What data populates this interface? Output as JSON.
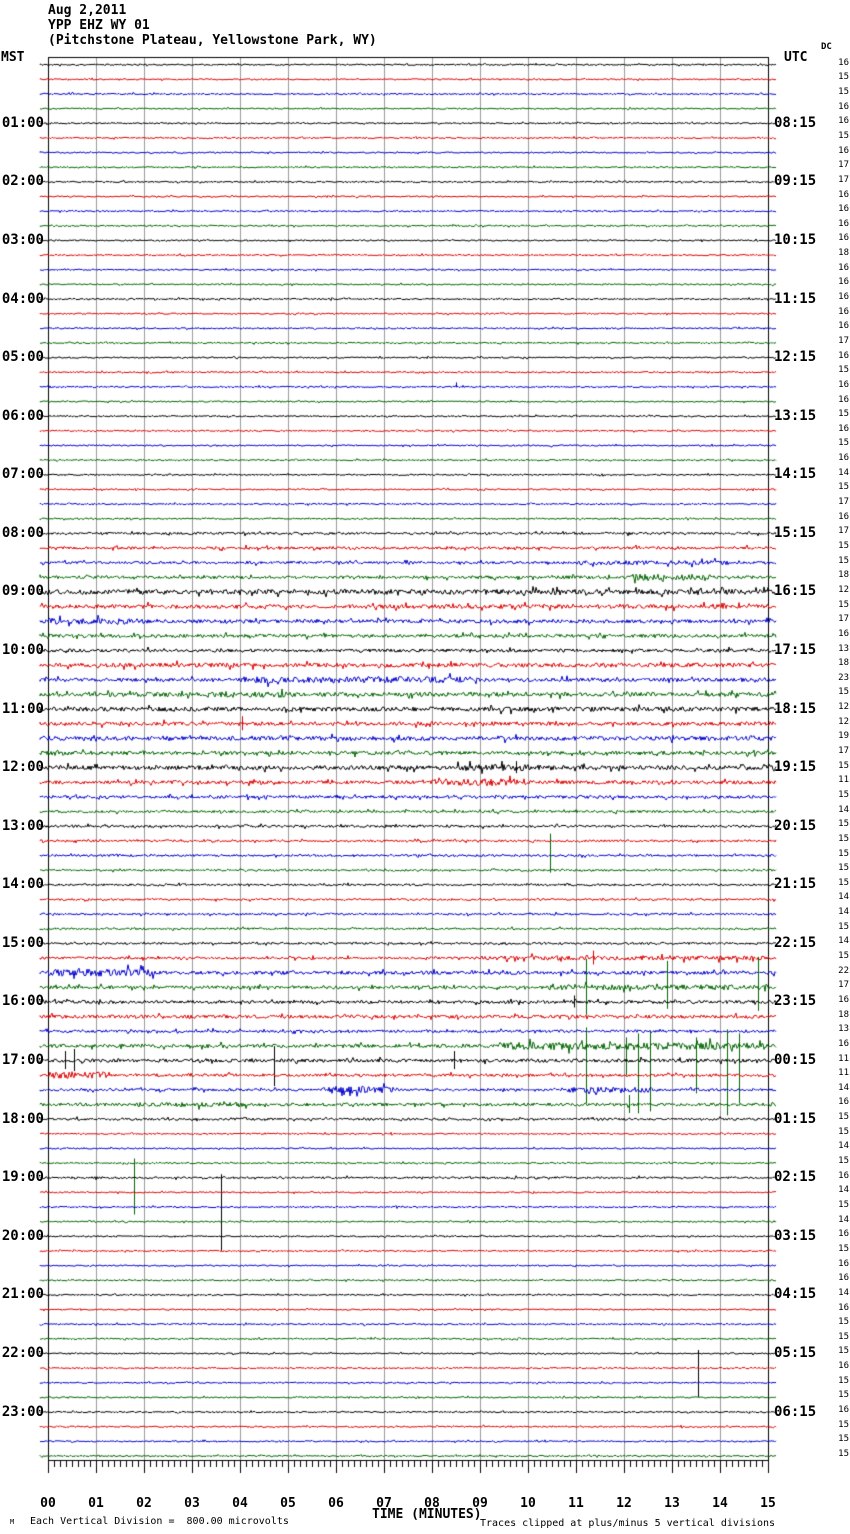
{
  "header": {
    "date": "Aug 2,2011",
    "station": "YPP EHZ WY 01",
    "location": "(Pitchstone Plateau, Yellowstone Park, WY)"
  },
  "axes": {
    "left_tz": "MST",
    "right_tz": "UTC",
    "dc_label": "DC",
    "x_title": "TIME (MINUTES)",
    "x_ticks": [
      "00",
      "01",
      "02",
      "03",
      "04",
      "05",
      "06",
      "07",
      "08",
      "09",
      "10",
      "11",
      "12",
      "13",
      "14",
      "15"
    ]
  },
  "footer": {
    "scale_note": "Each Vertical Division =  800.00 microvolts",
    "clip_note": "Traces clipped at plus/minus 5 vertical divisions",
    "corner_glyph": "M"
  },
  "chart_data": {
    "type": "line",
    "kind": "helicorder-seismogram",
    "minutes_per_line": 15,
    "lines_per_hour": 4,
    "num_rows": 96,
    "x_range": [
      0,
      15
    ],
    "grid_on": true,
    "grid_color": "#9a9a9a",
    "border_color": "#000000",
    "trace_colors": [
      "#000000",
      "#dd0000",
      "#0000cc",
      "#006600"
    ],
    "left_labels": [
      "01:00",
      "02:00",
      "03:00",
      "04:00",
      "05:00",
      "06:00",
      "07:00",
      "08:00",
      "09:00",
      "10:00",
      "11:00",
      "12:00",
      "13:00",
      "14:00",
      "15:00",
      "16:00",
      "17:00",
      "18:00",
      "19:00",
      "20:00",
      "21:00",
      "22:00",
      "23:00"
    ],
    "right_labels": [
      "08:15",
      "09:15",
      "10:15",
      "11:15",
      "12:15",
      "13:15",
      "14:15",
      "15:15",
      "16:15",
      "17:15",
      "18:15",
      "19:15",
      "20:15",
      "21:15",
      "22:15",
      "23:15",
      "00:15",
      "01:15",
      "02:15",
      "03:15",
      "04:15",
      "05:15",
      "06:15"
    ],
    "dc_values": [
      16,
      15,
      15,
      16,
      16,
      15,
      16,
      17,
      17,
      16,
      16,
      16,
      16,
      18,
      16,
      16,
      16,
      16,
      16,
      17,
      16,
      15,
      16,
      16,
      15,
      16,
      15,
      16,
      14,
      15,
      17,
      16,
      17,
      15,
      15,
      18,
      12,
      15,
      17,
      16,
      13,
      18,
      23,
      15,
      12,
      12,
      19,
      17,
      15,
      11,
      15,
      14,
      15,
      15,
      15,
      15,
      15,
      14,
      14,
      15,
      14,
      15,
      22,
      17,
      16,
      18,
      13,
      16,
      11,
      11,
      14,
      16,
      15,
      15,
      14,
      15,
      16,
      14,
      15,
      14,
      16,
      15,
      16,
      16,
      14,
      16,
      15,
      15,
      15,
      16,
      15,
      15,
      16,
      15,
      15,
      15
    ],
    "default_amp": 0.7,
    "row_overrides": {
      "22": {
        "spikes": [
          [
            8.5,
            4,
            1
          ]
        ]
      },
      "32": {
        "amp": 1.1
      },
      "33": {
        "amp": 1.3
      },
      "34": {
        "amp": 1.3,
        "segments": [
          [
            11,
            14.2,
            2.2
          ]
        ]
      },
      "35": {
        "amp": 1.4,
        "segments": [
          [
            12.2,
            13.8,
            3.2
          ]
        ]
      },
      "36": {
        "amp": 2.4
      },
      "37": {
        "amp": 2.0
      },
      "38": {
        "amp": 1.8,
        "segments": [
          [
            0,
            2,
            3.0
          ]
        ]
      },
      "39": {
        "amp": 1.6
      },
      "40": {
        "amp": 1.6
      },
      "41": {
        "amp": 2.0
      },
      "42": {
        "amp": 1.8,
        "segments": [
          [
            4,
            9,
            3.2
          ]
        ]
      },
      "43": {
        "amp": 2.0,
        "segments": [
          [
            3.3,
            5,
            3.0
          ]
        ]
      },
      "44": {
        "amp": 2.2
      },
      "45": {
        "amp": 1.8,
        "spikes": [
          [
            4.05,
            7,
            7
          ]
        ]
      },
      "46": {
        "amp": 2.0
      },
      "47": {
        "amp": 1.8
      },
      "48": {
        "amp": 2.0,
        "segments": [
          [
            8.5,
            10.5,
            3.2
          ]
        ],
        "spikes": [
          [
            9.75,
            6,
            6
          ]
        ]
      },
      "49": {
        "amp": 1.7,
        "segments": [
          [
            8,
            10,
            3.5
          ]
        ]
      },
      "50": {
        "amp": 1.4
      },
      "51": {
        "amp": 1.2
      },
      "52": {
        "amp": 1.2
      },
      "53": {
        "amp": 1.0
      },
      "54": {
        "amp": 1.0
      },
      "55": {
        "amp": 0.9,
        "spikes": [
          [
            10.45,
            36,
            3
          ]
        ]
      },
      "56": {
        "amp": 0.9
      },
      "57": {
        "amp": 0.9
      },
      "58": {
        "amp": 0.9
      },
      "59": {
        "amp": 0.9
      },
      "60": {
        "amp": 1.0
      },
      "61": {
        "amp": 1.1,
        "segments": [
          [
            9,
            15,
            2.2
          ]
        ],
        "spikes": [
          [
            11.35,
            7,
            7
          ]
        ]
      },
      "62": {
        "amp": 1.7,
        "segments": [
          [
            0,
            2.2,
            3.6
          ]
        ]
      },
      "63": {
        "amp": 1.6,
        "segments": [
          [
            10.4,
            15,
            2.6
          ]
        ],
        "spikes": [
          [
            11.2,
            28,
            28
          ],
          [
            12.9,
            26,
            22
          ],
          [
            14.8,
            30,
            24
          ]
        ]
      },
      "64": {
        "amp": 1.5,
        "spikes": [
          [
            10.95,
            6,
            6
          ]
        ]
      },
      "65": {
        "amp": 1.7
      },
      "66": {
        "amp": 1.3
      },
      "67": {
        "amp": 1.8,
        "segments": [
          [
            9.4,
            15,
            3.6
          ]
        ],
        "spikes": [
          [
            11.2,
            18,
            58
          ],
          [
            12.05,
            8,
            30
          ],
          [
            12.3,
            12,
            68
          ],
          [
            12.55,
            14,
            66
          ],
          [
            13.5,
            8,
            48
          ],
          [
            14.15,
            16,
            70
          ],
          [
            14.4,
            12,
            58
          ]
        ]
      },
      "68": {
        "amp": 1.7,
        "spikes": [
          [
            0.35,
            9,
            9
          ],
          [
            0.55,
            11,
            11
          ],
          [
            4.7,
            14,
            26
          ],
          [
            8.45,
            9,
            9
          ]
        ]
      },
      "69": {
        "amp": 1.3,
        "segments": [
          [
            0,
            1.3,
            3.4
          ]
        ]
      },
      "70": {
        "amp": 1.3,
        "segments": [
          [
            5.7,
            7.3,
            3.4
          ],
          [
            10.8,
            12.6,
            2.8
          ]
        ]
      },
      "71": {
        "amp": 1.5,
        "segments": [
          [
            1.8,
            4.2,
            2.4
          ]
        ],
        "spikes": [
          [
            12.1,
            9,
            9
          ]
        ]
      },
      "72": {
        "amp": 1.1
      },
      "75": {
        "amp": 0.7,
        "spikes": [
          [
            1.8,
            4,
            52
          ]
        ]
      },
      "76": {
        "amp": 0.9,
        "spikes": [
          [
            3.6,
            3,
            74
          ]
        ]
      },
      "88": {
        "amp": 0.7,
        "spikes": [
          [
            13.55,
            3,
            44
          ]
        ]
      }
    }
  }
}
